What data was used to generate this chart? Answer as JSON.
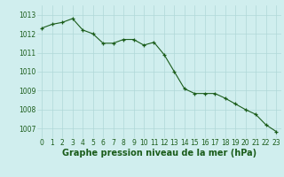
{
  "x": [
    0,
    1,
    2,
    3,
    4,
    5,
    6,
    7,
    8,
    9,
    10,
    11,
    12,
    13,
    14,
    15,
    16,
    17,
    18,
    19,
    20,
    21,
    22,
    23
  ],
  "y": [
    1012.3,
    1012.5,
    1012.6,
    1012.8,
    1012.2,
    1012.0,
    1011.5,
    1011.5,
    1011.7,
    1011.7,
    1011.4,
    1011.55,
    1010.9,
    1010.0,
    1009.1,
    1008.85,
    1008.85,
    1008.85,
    1008.6,
    1008.3,
    1008.0,
    1007.75,
    1007.2,
    1006.85
  ],
  "line_color": "#1a5c1a",
  "marker_color": "#1a5c1a",
  "bg_color": "#d0eeee",
  "grid_color": "#b0d8d8",
  "xlabel": "Graphe pression niveau de la mer (hPa)",
  "xlabel_color": "#1a5c1a",
  "tick_color": "#1a5c1a",
  "ylim": [
    1006.5,
    1013.5
  ],
  "yticks": [
    1007,
    1008,
    1009,
    1010,
    1011,
    1012,
    1013
  ],
  "xticks": [
    0,
    1,
    2,
    3,
    4,
    5,
    6,
    7,
    8,
    9,
    10,
    11,
    12,
    13,
    14,
    15,
    16,
    17,
    18,
    19,
    20,
    21,
    22,
    23
  ],
  "tick_fontsize": 5.5,
  "xlabel_fontsize": 7.0
}
